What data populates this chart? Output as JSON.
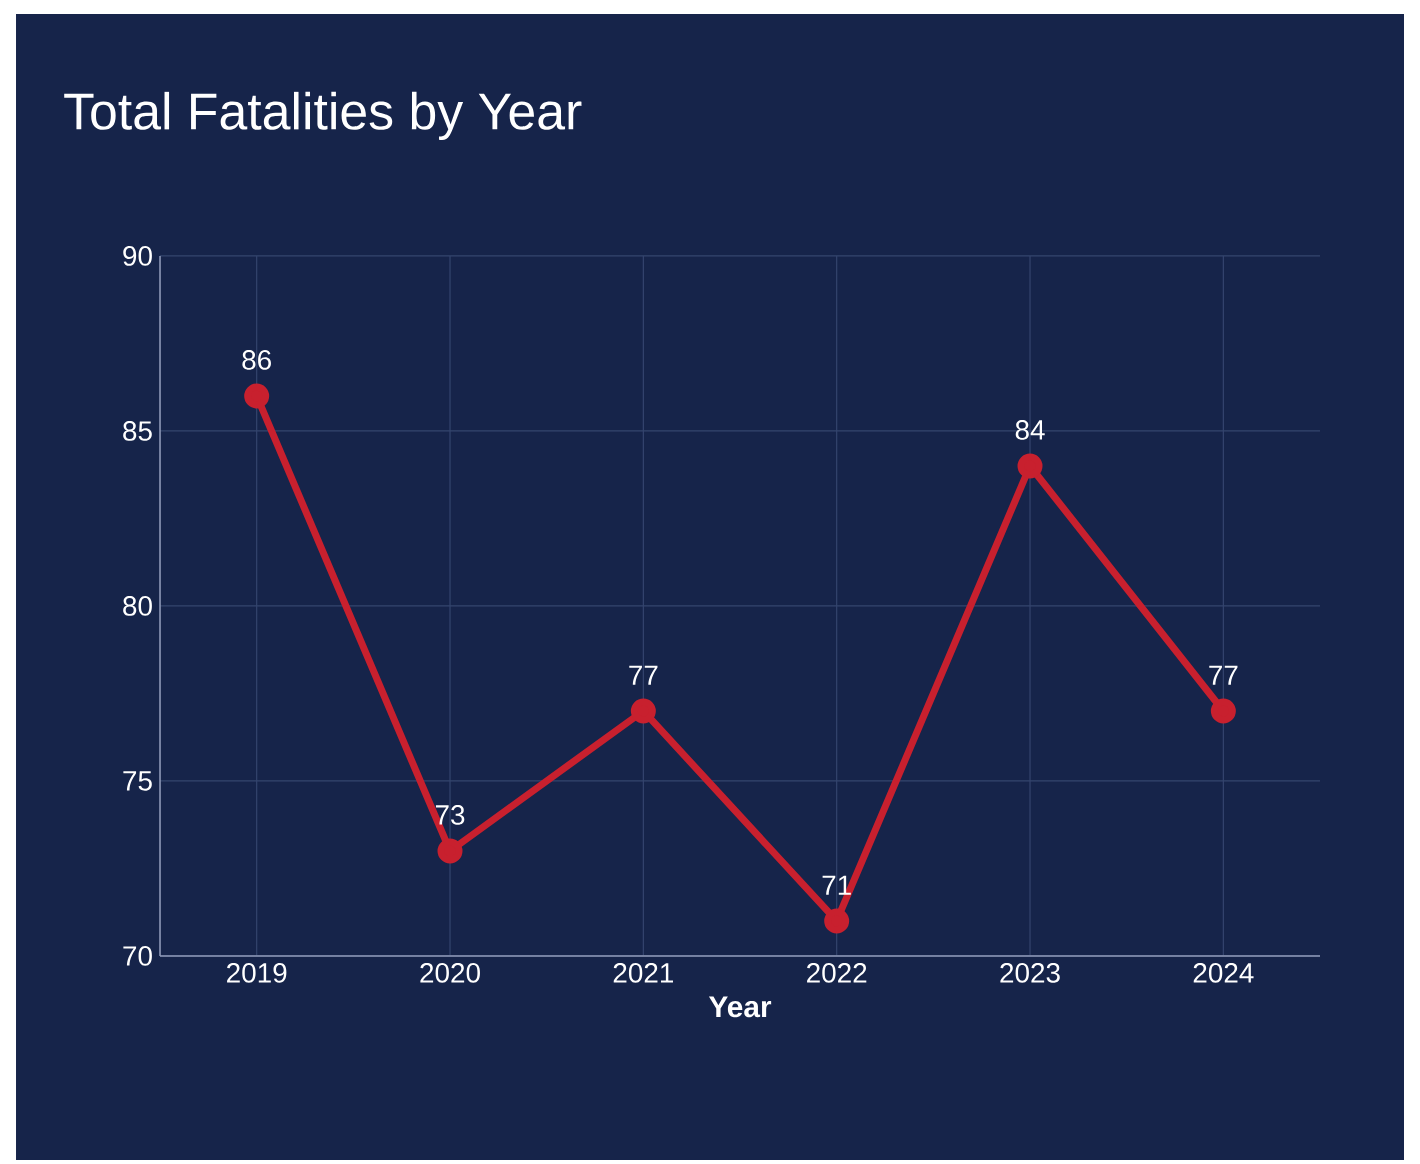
{
  "chart_data": {
    "type": "line",
    "title": "Total Fatalities by Year",
    "xlabel": "Year",
    "categories": [
      "2019",
      "2020",
      "2021",
      "2022",
      "2023",
      "2024"
    ],
    "series": [
      {
        "color": "#c8202e",
        "values": [
          86,
          73,
          77,
          71,
          84,
          77
        ]
      }
    ],
    "ylim": [
      70,
      90
    ],
    "yticks": [
      70,
      75,
      80,
      85,
      90
    ],
    "grid": true,
    "marker": "circle",
    "data_labels": true
  }
}
